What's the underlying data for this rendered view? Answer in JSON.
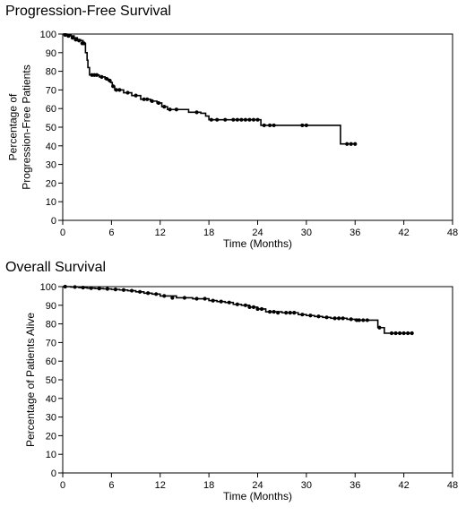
{
  "chart_data": [
    {
      "type": "line",
      "step": true,
      "title": "Progression-Free Survival",
      "xlabel": "Time (Months)",
      "ylabel_lines": [
        "Percentage of",
        "Progression-Free Patients"
      ],
      "xlim": [
        0,
        48
      ],
      "ylim": [
        0,
        100
      ],
      "xticks": [
        0,
        6,
        12,
        18,
        24,
        30,
        36,
        42,
        48
      ],
      "yticks": [
        0,
        10,
        20,
        30,
        40,
        50,
        60,
        70,
        80,
        90,
        100
      ],
      "line_color": "#000000",
      "series": [
        {
          "x": [
            0,
            0.5,
            1.0,
            1.4,
            1.8,
            2.2,
            2.5,
            2.8,
            3.0,
            3.1,
            3.3,
            4.5,
            5.2,
            5.6,
            5.9,
            6.1,
            6.4,
            7.5,
            8.5,
            9.6,
            10.8,
            11.6,
            12.2,
            12.9,
            15.5,
            17.0,
            17.6,
            18.0,
            24.4,
            34.2,
            36.0
          ],
          "y": [
            100,
            99.5,
            99,
            98,
            97,
            96.5,
            95,
            90,
            86,
            82,
            78,
            77,
            76,
            75,
            74,
            72,
            70,
            68.5,
            67,
            65,
            64,
            63,
            61,
            59.5,
            58,
            57.5,
            56,
            54,
            51,
            41,
            41
          ]
        }
      ],
      "censor_marks": {
        "x": [
          0.3,
          0.7,
          1.2,
          1.6,
          2.0,
          2.4,
          2.6,
          3.6,
          3.9,
          4.2,
          4.8,
          5.4,
          5.8,
          6.2,
          6.6,
          7.0,
          8.0,
          9.0,
          10.0,
          10.4,
          11.0,
          11.8,
          12.5,
          13.2,
          14.0,
          16.5,
          18.3,
          19.0,
          20.0,
          21.0,
          21.5,
          22.0,
          22.5,
          23.0,
          23.5,
          24.0,
          24.8,
          25.5,
          26.0,
          29.5,
          30.0,
          35.0,
          35.5,
          36.0
        ],
        "y": [
          99.5,
          99,
          98,
          97,
          96.5,
          95,
          95,
          78,
          78,
          78,
          77,
          76,
          75,
          72,
          70,
          70,
          68.5,
          67,
          65,
          65,
          64,
          63,
          61,
          59.5,
          59.5,
          58,
          54,
          54,
          54,
          54,
          54,
          54,
          54,
          54,
          54,
          54,
          51,
          51,
          51,
          51,
          51,
          41,
          41,
          41
        ]
      }
    },
    {
      "type": "line",
      "step": true,
      "title": "Overall Survival",
      "xlabel": "Time (Months)",
      "ylabel_lines": [
        "Percentage of Patients Alive"
      ],
      "xlim": [
        0,
        48
      ],
      "ylim": [
        0,
        100
      ],
      "xticks": [
        0,
        6,
        12,
        18,
        24,
        30,
        36,
        42,
        48
      ],
      "yticks": [
        0,
        10,
        20,
        30,
        40,
        50,
        60,
        70,
        80,
        90,
        100
      ],
      "line_color": "#000000",
      "series": [
        {
          "x": [
            0,
            1,
            2,
            3,
            4,
            5,
            6,
            7,
            8,
            9,
            10,
            11,
            12,
            14,
            16,
            18,
            19,
            20,
            21,
            22,
            23,
            24,
            25,
            27,
            29,
            30,
            31,
            32,
            33,
            35,
            36,
            38,
            38.8,
            39.6,
            43
          ],
          "y": [
            100,
            99.8,
            99.5,
            99.2,
            99,
            98.8,
            98.5,
            98.2,
            97.8,
            97.2,
            96.5,
            96,
            95,
            94,
            93.5,
            92.5,
            92,
            91.5,
            90.5,
            90,
            89,
            88,
            86.5,
            86,
            85,
            84.5,
            84,
            83.5,
            83,
            82.5,
            82,
            82,
            78,
            75,
            75
          ]
        }
      ],
      "censor_marks": {
        "x": [
          0.3,
          1.5,
          2.5,
          3.5,
          4.5,
          5.5,
          6.5,
          7.5,
          8.5,
          9.5,
          10.5,
          11.5,
          12.5,
          13.5,
          15.0,
          16.5,
          17.5,
          18.5,
          19.5,
          20.5,
          21.5,
          22.5,
          23.0,
          23.5,
          24.0,
          24.5,
          25.5,
          26.0,
          26.5,
          27.5,
          28.0,
          28.5,
          29.5,
          30.5,
          31.5,
          32.5,
          33.5,
          34.0,
          34.5,
          35.5,
          36.2,
          36.5,
          37.0,
          37.5,
          39.0,
          40.5,
          41.0,
          41.5,
          42.0,
          42.5,
          43.0
        ],
        "y": [
          100,
          99.8,
          99.5,
          99.2,
          99,
          98.8,
          98.5,
          98.2,
          97.8,
          97.2,
          96.5,
          96,
          95,
          94,
          94,
          93.5,
          93.5,
          92.5,
          92,
          91.5,
          90.5,
          90,
          89,
          89,
          88,
          88,
          86.5,
          86.5,
          86,
          86,
          86,
          86,
          85,
          84.5,
          84,
          83.5,
          83,
          83,
          83,
          82.5,
          82,
          82,
          82,
          82,
          78,
          75,
          75,
          75,
          75,
          75,
          75
        ]
      }
    }
  ]
}
